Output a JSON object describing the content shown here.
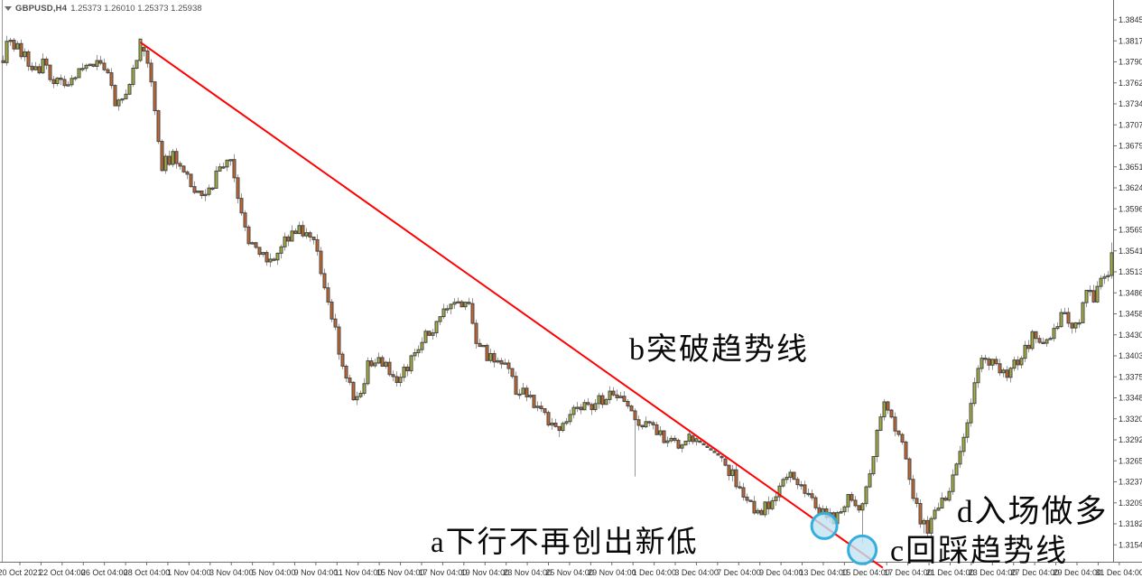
{
  "window": {
    "symbol_timeframe": "GBPUSD,H4",
    "ohlc_text": "1.25373 1.26010 1.25373 1.25938",
    "dropdown_icon": "triangle-down"
  },
  "chart_data": {
    "type": "candlestick",
    "title": "GBPUSD,H4 1.25373 1.26010 1.25373 1.25938",
    "symbol": "GBPUSD",
    "timeframe": "H4",
    "grid": false,
    "legend_position": "none",
    "ylim": [
      1.313,
      1.3848
    ],
    "candle_count": 308,
    "y_axis_labels": [
      "1.38450",
      "1.38175",
      "1.37900",
      "1.37620",
      "1.37345",
      "1.37070",
      "1.36795",
      "1.36515",
      "1.36240",
      "1.35965",
      "1.35690",
      "1.35410",
      "1.35135",
      "1.34860",
      "1.34585",
      "1.34305",
      "1.34030",
      "1.33755",
      "1.33480",
      "1.33200",
      "1.32925",
      "1.32650",
      "1.32375",
      "1.32095",
      "1.31820",
      "1.31545"
    ],
    "x_axis_labels": [
      "20 Oct 2021",
      "22 Oct 04:00",
      "26 Oct 04:00",
      "28 Oct 04:00",
      "1 Nov 04:00",
      "3 Nov 04:00",
      "5 Nov 04:00",
      "9 Nov 04:00",
      "11 Nov 04:00",
      "15 Nov 04:00",
      "17 Nov 04:00",
      "19 Nov 04:00",
      "23 Nov 04:00",
      "25 Nov 04:00",
      "29 Nov 04:00",
      "1 Dec 04:00",
      "3 Dec 04:00",
      "7 Dec 04:00",
      "9 Dec 04:00",
      "13 Dec 04:00",
      "15 Dec 04:00",
      "17 Dec 04:00",
      "21 Dec 04:00",
      "23 Dec 04:00",
      "27 Dec 04:00",
      "29 Dec 04:00",
      "31 Dec 04:00"
    ],
    "price_path_anchors": [
      [
        0,
        1.3795
      ],
      [
        2,
        1.3822
      ],
      [
        5,
        1.3802
      ],
      [
        8,
        1.378
      ],
      [
        11,
        1.3786
      ],
      [
        14,
        1.3768
      ],
      [
        17,
        1.376
      ],
      [
        20,
        1.377
      ],
      [
        23,
        1.378
      ],
      [
        26,
        1.3792
      ],
      [
        29,
        1.3778
      ],
      [
        31,
        1.374
      ],
      [
        34,
        1.3748
      ],
      [
        36,
        1.3785
      ],
      [
        38,
        1.3814
      ],
      [
        40,
        1.3793
      ],
      [
        42,
        1.372
      ],
      [
        44,
        1.3655
      ],
      [
        47,
        1.3668
      ],
      [
        50,
        1.364
      ],
      [
        53,
        1.3625
      ],
      [
        56,
        1.3608
      ],
      [
        58,
        1.3628
      ],
      [
        60,
        1.3656
      ],
      [
        63,
        1.366
      ],
      [
        65,
        1.3605
      ],
      [
        67,
        1.3565
      ],
      [
        70,
        1.3548
      ],
      [
        73,
        1.3532
      ],
      [
        76,
        1.354
      ],
      [
        79,
        1.3558
      ],
      [
        82,
        1.3575
      ],
      [
        84,
        1.3562
      ],
      [
        86,
        1.355
      ],
      [
        89,
        1.35
      ],
      [
        92,
        1.3435
      ],
      [
        95,
        1.337
      ],
      [
        98,
        1.3346
      ],
      [
        101,
        1.3388
      ],
      [
        104,
        1.3398
      ],
      [
        107,
        1.338
      ],
      [
        110,
        1.3372
      ],
      [
        112,
        1.339
      ],
      [
        114,
        1.3412
      ],
      [
        117,
        1.3428
      ],
      [
        120,
        1.3448
      ],
      [
        123,
        1.3468
      ],
      [
        125,
        1.3482
      ],
      [
        127,
        1.3474
      ],
      [
        129,
        1.3466
      ],
      [
        131,
        1.3428
      ],
      [
        134,
        1.3402
      ],
      [
        137,
        1.3394
      ],
      [
        140,
        1.3386
      ],
      [
        142,
        1.336
      ],
      [
        145,
        1.3348
      ],
      [
        148,
        1.3338
      ],
      [
        151,
        1.332
      ],
      [
        154,
        1.3306
      ],
      [
        157,
        1.3322
      ],
      [
        160,
        1.3336
      ],
      [
        163,
        1.334
      ],
      [
        166,
        1.3348
      ],
      [
        169,
        1.3354
      ],
      [
        171,
        1.335
      ],
      [
        174,
        1.333
      ],
      [
        177,
        1.3314
      ],
      [
        180,
        1.3304
      ],
      [
        183,
        1.3294
      ],
      [
        186,
        1.3284
      ],
      [
        189,
        1.3297
      ],
      [
        192,
        1.3289
      ],
      [
        195,
        1.328
      ],
      [
        197,
        1.329
      ],
      [
        200,
        1.326
      ],
      [
        203,
        1.3238
      ],
      [
        206,
        1.3214
      ],
      [
        209,
        1.3196
      ],
      [
        212,
        1.3205
      ],
      [
        215,
        1.3224
      ],
      [
        218,
        1.3252
      ],
      [
        221,
        1.3235
      ],
      [
        224,
        1.3212
      ],
      [
        227,
        1.3199
      ],
      [
        230,
        1.3186
      ],
      [
        232,
        1.3202
      ],
      [
        234,
        1.3214
      ],
      [
        236,
        1.3208
      ],
      [
        238,
        1.32
      ],
      [
        240,
        1.3246
      ],
      [
        242,
        1.3296
      ],
      [
        244,
        1.3338
      ],
      [
        246,
        1.3318
      ],
      [
        248,
        1.3298
      ],
      [
        250,
        1.3266
      ],
      [
        252,
        1.3224
      ],
      [
        254,
        1.3186
      ],
      [
        256,
        1.3178
      ],
      [
        258,
        1.3198
      ],
      [
        260,
        1.321
      ],
      [
        262,
        1.3226
      ],
      [
        264,
        1.3252
      ],
      [
        266,
        1.329
      ],
      [
        268,
        1.334
      ],
      [
        270,
        1.3388
      ],
      [
        272,
        1.3398
      ],
      [
        274,
        1.34
      ],
      [
        276,
        1.3388
      ],
      [
        278,
        1.3382
      ],
      [
        280,
        1.3392
      ],
      [
        282,
        1.3398
      ],
      [
        284,
        1.342
      ],
      [
        286,
        1.3432
      ],
      [
        288,
        1.3427
      ],
      [
        290,
        1.3424
      ],
      [
        292,
        1.3448
      ],
      [
        294,
        1.3455
      ],
      [
        296,
        1.3432
      ],
      [
        298,
        1.3452
      ],
      [
        300,
        1.3492
      ],
      [
        302,
        1.3478
      ],
      [
        304,
        1.3502
      ],
      [
        306,
        1.3512
      ],
      [
        307,
        1.3538
      ]
    ],
    "wick_overrides": {
      "38": {
        "high": 1.3815
      },
      "98": {
        "low": 1.3338
      },
      "154": {
        "low": 1.3296
      },
      "175": {
        "low": 1.3244
      },
      "238": {
        "low": 1.3156
      },
      "255": {
        "low": 1.3169
      },
      "307": {
        "high": 1.3552
      }
    },
    "trendline": {
      "x1_candle": 38,
      "y1_price": 1.38155,
      "x2_candle": 243.6,
      "y2_price": 1.3124
    },
    "circles": [
      {
        "label": "trendline-touch-1",
        "candle": 227.4,
        "price": 1.3179,
        "r": 14
      },
      {
        "label": "trendline-touch-2",
        "candle": 237.9,
        "price": 1.31475,
        "r": 15.5
      }
    ],
    "annotations": [
      {
        "id": "a",
        "text": "a下行不再创出新低"
      },
      {
        "id": "b",
        "text": "b突破趋势线"
      },
      {
        "id": "c",
        "text": "c回踩趋势线"
      },
      {
        "id": "d",
        "text": "d入场做多"
      }
    ],
    "colors": {
      "bull": "#a4b13e",
      "bear": "#c4672e",
      "body_outline": "#474747",
      "wick": "#969696",
      "trendline": "#ff0000",
      "circle_stroke": "#35aede",
      "circle_fill": "#bfe3f2",
      "axis_text": "#2e2e2e",
      "axis_line": "#6e6e6e",
      "title_text": "#4f4f4f"
    }
  }
}
